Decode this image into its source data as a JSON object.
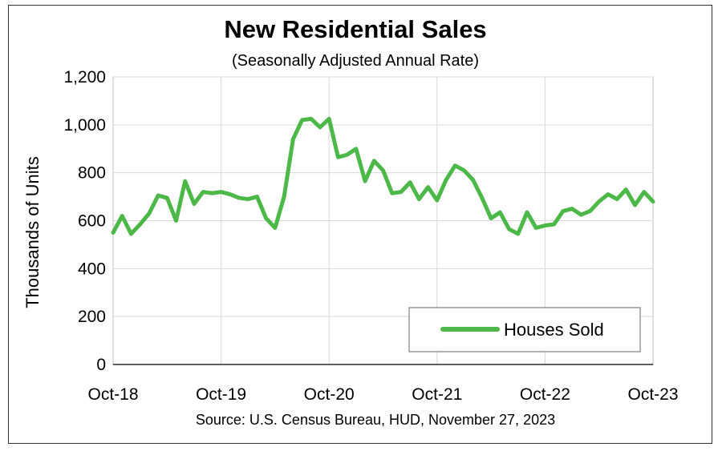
{
  "chart_data": {
    "type": "line",
    "title": "New Residential Sales",
    "subtitle": "(Seasonally Adjusted Annual Rate)",
    "ylabel": "Thousands of Units",
    "xlabel": "",
    "source": "Source:  U.S. Census Bureau, HUD, November 27, 2023",
    "ylim": [
      0,
      1200
    ],
    "yticks": [
      0,
      200,
      400,
      600,
      800,
      1000,
      1200
    ],
    "ytick_labels": [
      "0",
      "200",
      "400",
      "600",
      "800",
      "1,000",
      "1,200"
    ],
    "xticks": [
      {
        "index": 0,
        "label": "Oct-18"
      },
      {
        "index": 12,
        "label": "Oct-19"
      },
      {
        "index": 24,
        "label": "Oct-20"
      },
      {
        "index": 36,
        "label": "Oct-21"
      },
      {
        "index": 48,
        "label": "Oct-22"
      },
      {
        "index": 60,
        "label": "Oct-23"
      }
    ],
    "grid": true,
    "legend": "bottom-right",
    "series_color": "#4CB848",
    "series": [
      {
        "name": "Houses Sold",
        "values": [
          550,
          620,
          545,
          585,
          630,
          705,
          695,
          600,
          765,
          670,
          720,
          715,
          720,
          710,
          695,
          690,
          700,
          610,
          570,
          700,
          940,
          1020,
          1025,
          990,
          1025,
          865,
          875,
          900,
          765,
          850,
          810,
          715,
          720,
          760,
          690,
          740,
          685,
          770,
          830,
          810,
          770,
          695,
          610,
          635,
          565,
          545,
          635,
          570,
          580,
          585,
          640,
          650,
          625,
          640,
          680,
          710,
          690,
          730,
          665,
          720,
          680
        ]
      }
    ]
  }
}
